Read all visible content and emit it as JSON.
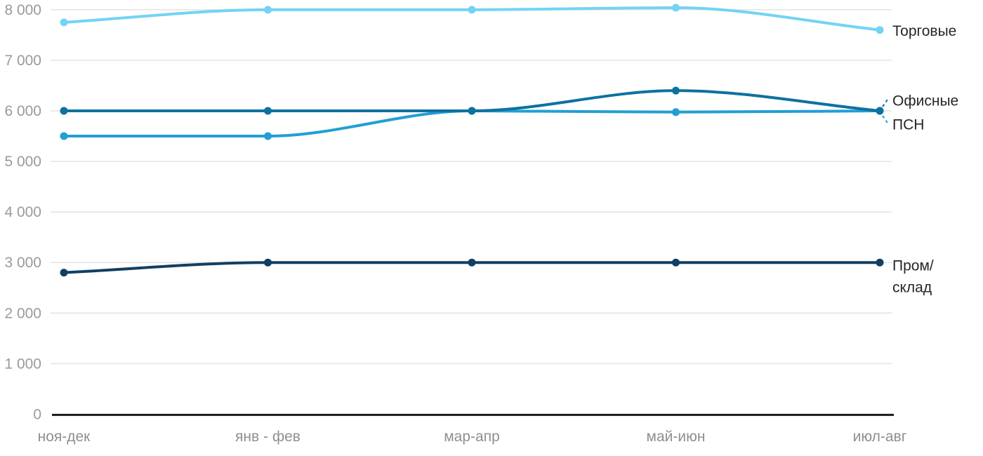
{
  "chart_data": {
    "type": "line",
    "title": "",
    "categories": [
      "ноя-дек",
      "янв - фев",
      "мар-апр",
      "май-июн",
      "июл-авг"
    ],
    "series": [
      {
        "name": "Торговые",
        "color": "#73d3f5",
        "values": [
          7750,
          8000,
          8000,
          8040,
          7600
        ],
        "label_lines": [
          "Торговые"
        ]
      },
      {
        "name": "ПСН",
        "color": "#219fd3",
        "values": [
          5500,
          5500,
          6000,
          5975,
          6000
        ],
        "label_lines": [
          "ПСН"
        ]
      },
      {
        "name": "Офисные",
        "color": "#0e719f",
        "values": [
          6000,
          6000,
          6000,
          6400,
          6000
        ],
        "label_lines": [
          "Офисные"
        ]
      },
      {
        "name": "Пром/склад",
        "color": "#113f63",
        "values": [
          2800,
          3000,
          3000,
          3000,
          3000
        ],
        "label_lines": [
          "Пром/",
          "склад"
        ]
      }
    ],
    "y_axis": {
      "min": 0,
      "max": 8000,
      "step": 1000,
      "tick_labels": [
        "0",
        "1 000",
        "2 000",
        "3 000",
        "4 000",
        "5 000",
        "6 000",
        "7 000",
        "8 000"
      ]
    },
    "x_axis": {
      "tick_labels": [
        "ноя-дек",
        "янв - фев",
        "мар-апр",
        "май-июн",
        "июл-авг"
      ]
    },
    "legend_position": "right-direct-labels",
    "grid": "horizontal",
    "ylim": [
      0,
      8000
    ],
    "colors": {
      "grid": "#e3e3e3",
      "axis_line": "#1a1a1a",
      "tick_text": "#9a9a9a",
      "x_tick_text": "#8f8f8f",
      "legend_text": "#262626",
      "background": "#ffffff"
    }
  }
}
